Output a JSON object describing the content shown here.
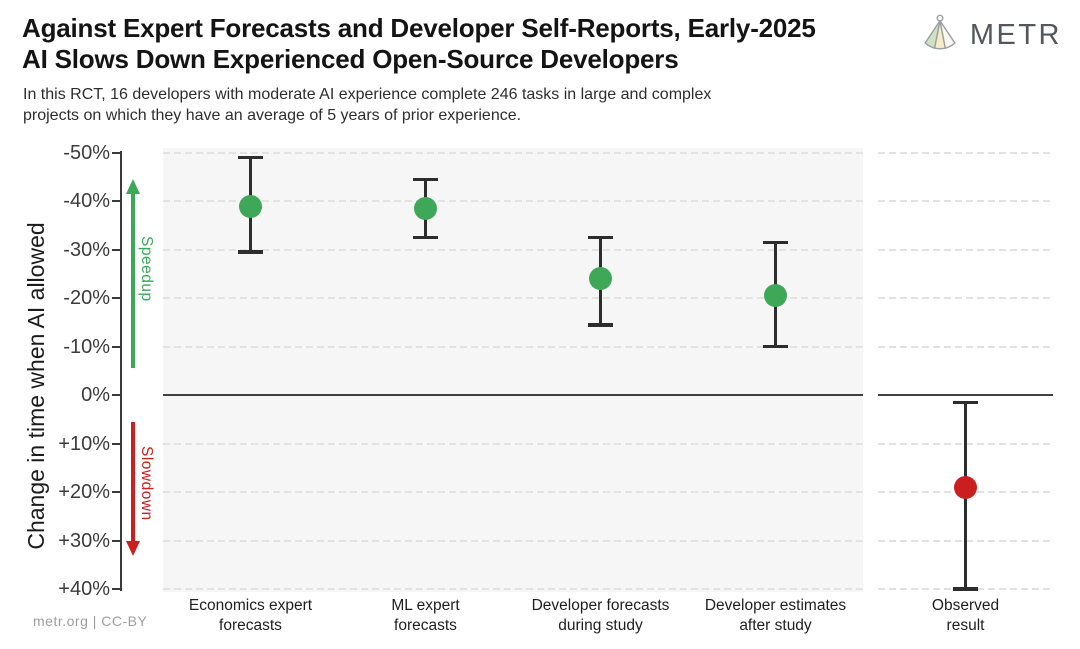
{
  "header": {
    "title_line1": "Against Expert Forecasts and Developer Self-Reports, Early-2025",
    "title_line2": "AI Slows Down Experienced Open-Source Developers",
    "subtitle_line1": "In this RCT, 16 developers with moderate AI experience complete 246 tasks in large and complex",
    "subtitle_line2": "projects on which they have an average of 5 years of prior experience.",
    "logo_text": "METR"
  },
  "footer": {
    "credit": "metr.org  |  CC-BY"
  },
  "colors": {
    "speedup_green": "#3ea858",
    "slowdown_red": "#cc1f1f",
    "point_green": "#3ea858",
    "point_red": "#cb1f1f",
    "whisker": "#2d2d2d",
    "panel_bg": "#f6f6f6",
    "grid": "#e2e2e2",
    "zero_line": "#414141"
  },
  "chart_data": {
    "type": "scatter",
    "ylabel": "Change in time when AI allowed",
    "annotations": {
      "speedup": "Speedup",
      "slowdown": "Slowdown"
    },
    "axis": {
      "top_value": -51,
      "bottom_value": 40.6,
      "zero_value": 0,
      "ticks": [
        {
          "value": -50,
          "label": "-50%"
        },
        {
          "value": -40,
          "label": "-40%"
        },
        {
          "value": -30,
          "label": "-30%"
        },
        {
          "value": -20,
          "label": "-20%"
        },
        {
          "value": -10,
          "label": "-10%"
        },
        {
          "value": 0,
          "label": "0%"
        },
        {
          "value": 10,
          "label": "+10%"
        },
        {
          "value": 20,
          "label": "+20%"
        },
        {
          "value": 30,
          "label": "+30%"
        },
        {
          "value": 40,
          "label": "+40%"
        }
      ]
    },
    "series": [
      {
        "name": "Economics expert forecasts",
        "label_lines": [
          "Economics expert",
          "forecasts"
        ],
        "value": -39,
        "ci_low": -49,
        "ci_high": -29.5,
        "panel": "main",
        "color": "#3ea858"
      },
      {
        "name": "ML expert forecasts",
        "label_lines": [
          "ML expert",
          "forecasts"
        ],
        "value": -38.5,
        "ci_low": -44.5,
        "ci_high": -32.5,
        "panel": "main",
        "color": "#3ea858"
      },
      {
        "name": "Developer forecasts during study",
        "label_lines": [
          "Developer forecasts",
          "during study"
        ],
        "value": -24,
        "ci_low": -32.5,
        "ci_high": -14.5,
        "panel": "main",
        "color": "#3ea858"
      },
      {
        "name": "Developer estimates after study",
        "label_lines": [
          "Developer estimates",
          "after study"
        ],
        "value": -20.5,
        "ci_low": -31.5,
        "ci_high": -10,
        "panel": "main",
        "color": "#3ea858"
      },
      {
        "name": "Observed result",
        "label_lines": [
          "Observed",
          "result"
        ],
        "value": 19,
        "ci_low": 1.5,
        "ci_high": 40,
        "panel": "observed",
        "color": "#cb1f1f"
      }
    ]
  }
}
